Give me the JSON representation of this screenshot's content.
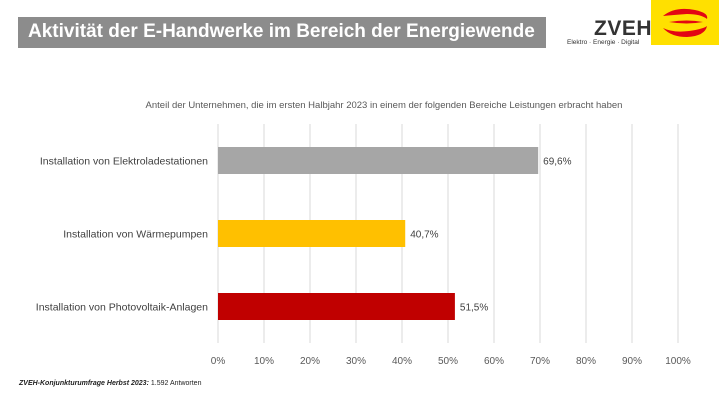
{
  "header": {
    "title": "Aktivität der E-Handwerke im Bereich der Energiewende",
    "logo_text": "ZVEH",
    "logo_tagline": "Elektro · Energie · Digital"
  },
  "footer": {
    "source_bold": "ZVEH-Konjunkturumfrage Herbst 2023:",
    "source_rest": " 1.592 Antworten"
  },
  "colors": {
    "title_bar": "#8c8c8c",
    "logo_yellow": "#ffe000",
    "logo_red": "#e30613"
  },
  "chart_data": {
    "type": "bar",
    "orientation": "horizontal",
    "subtitle": "Anteil der Unternehmen, die im ersten Halbjahr 2023 in einem der folgenden Bereiche Leistungen erbracht haben",
    "categories": [
      "Installation von Elektroladestationen",
      "Installation von Wärmepumpen",
      "Installation von Photovoltaik-Anlagen"
    ],
    "values": [
      69.6,
      40.7,
      51.5
    ],
    "data_labels": [
      "69,6%",
      "40,7%",
      "51,5%"
    ],
    "colors": [
      "#a6a6a6",
      "#ffc000",
      "#c00000"
    ],
    "xlim": [
      0,
      100
    ],
    "xticks": [
      "0%",
      "10%",
      "20%",
      "30%",
      "40%",
      "50%",
      "60%",
      "70%",
      "80%",
      "90%",
      "100%"
    ],
    "grid": true,
    "legend": "none"
  }
}
